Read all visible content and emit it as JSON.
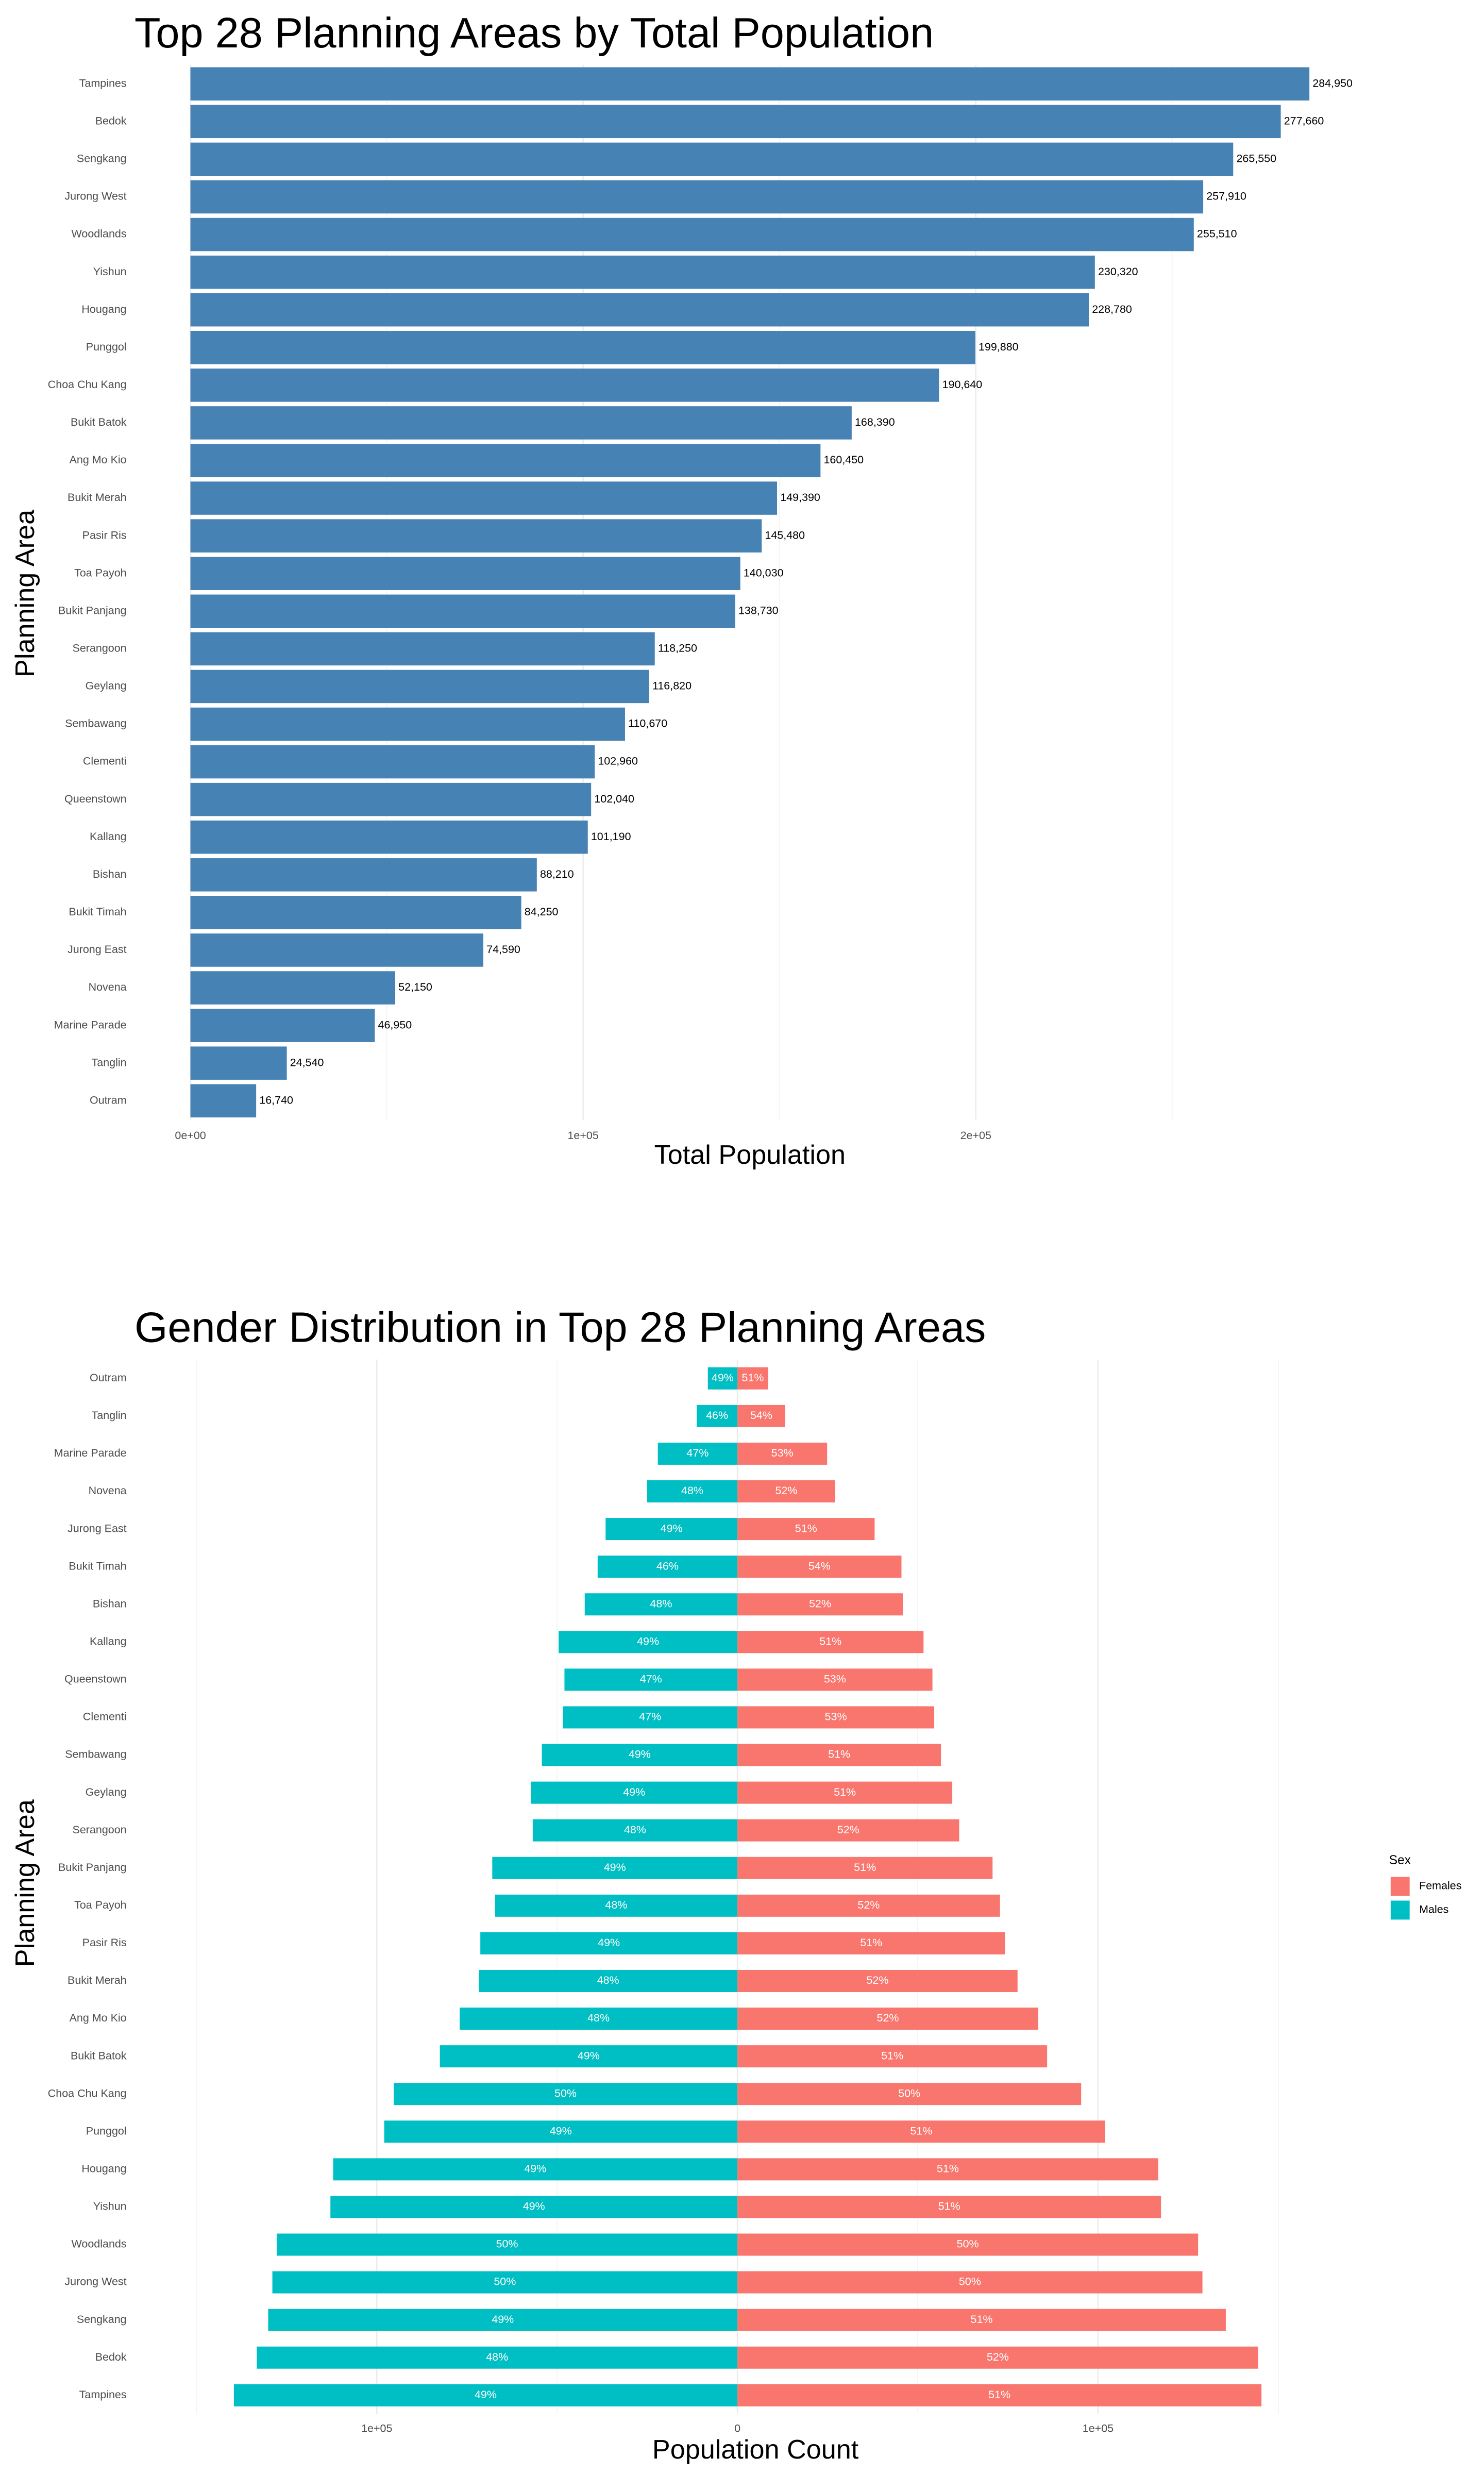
{
  "chart_data": [
    {
      "type": "bar",
      "orientation": "horizontal",
      "title": "Top 28 Planning Areas by Total Population",
      "x_label": "Total Population",
      "y_label": "Planning Area",
      "categories": [
        "Tampines",
        "Bedok",
        "Sengkang",
        "Jurong West",
        "Woodlands",
        "Yishun",
        "Hougang",
        "Punggol",
        "Choa Chu Kang",
        "Bukit Batok",
        "Ang Mo Kio",
        "Bukit Merah",
        "Pasir Ris",
        "Toa Payoh",
        "Bukit Panjang",
        "Serangoon",
        "Geylang",
        "Sembawang",
        "Clementi",
        "Queenstown",
        "Kallang",
        "Bishan",
        "Bukit Timah",
        "Jurong East",
        "Novena",
        "Marine Parade",
        "Tanglin",
        "Outram"
      ],
      "values": [
        284950,
        277660,
        265550,
        257910,
        255510,
        230320,
        228780,
        199880,
        190640,
        168390,
        160450,
        149390,
        145480,
        140030,
        138730,
        118250,
        116820,
        110670,
        102960,
        102040,
        101190,
        88210,
        84250,
        74590,
        52150,
        46950,
        24540,
        16740
      ],
      "value_labels": [
        "284,950",
        "277,660",
        "265,550",
        "257,910",
        "255,510",
        "230,320",
        "228,780",
        "199,880",
        "190,640",
        "168,390",
        "160,450",
        "149,390",
        "145,480",
        "140,030",
        "138,730",
        "118,250",
        "116,820",
        "110,670",
        "102,960",
        "102,040",
        "101,190",
        "88,210",
        "84,250",
        "74,590",
        "52,150",
        "46,950",
        "24,540",
        "16,740"
      ],
      "color": "#4682b4",
      "xlim": [
        -14247.5,
        299197.5
      ],
      "xticks": [
        {
          "value": 0,
          "label": "0e+00"
        },
        {
          "value": 100000,
          "label": "1e+05"
        },
        {
          "value": 200000,
          "label": "2e+05"
        }
      ],
      "xminor": [
        50000,
        150000,
        250000
      ],
      "grid": true
    },
    {
      "type": "bar",
      "orientation": "horizontal",
      "title": "Gender Distribution in Top 28 Planning Areas",
      "x_label": "Population Count",
      "y_label": "Planning Area",
      "legend_title": "Sex",
      "legend": "right",
      "categories": [
        "Outram",
        "Tanglin",
        "Marine Parade",
        "Novena",
        "Jurong East",
        "Bukit Timah",
        "Bishan",
        "Kallang",
        "Queenstown",
        "Clementi",
        "Sembawang",
        "Geylang",
        "Serangoon",
        "Bukit Panjang",
        "Toa Payoh",
        "Pasir Ris",
        "Bukit Merah",
        "Ang Mo Kio",
        "Bukit Batok",
        "Choa Chu Kang",
        "Punggol",
        "Hougang",
        "Yishun",
        "Woodlands",
        "Jurong West",
        "Sengkang",
        "Bedok",
        "Tampines"
      ],
      "series": [
        {
          "name": "Females",
          "color": "#f8766d",
          "values": [
            8540,
            13250,
            24880,
            27120,
            38040,
            45490,
            45870,
            51610,
            54080,
            54570,
            56440,
            59580,
            61490,
            70750,
            72820,
            74190,
            77680,
            83430,
            85880,
            95320,
            101940,
            116680,
            117460,
            127750,
            128950,
            135430,
            144380,
            145320
          ],
          "shares": [
            51,
            54,
            53,
            52,
            51,
            54,
            52,
            51,
            53,
            53,
            51,
            51,
            52,
            51,
            52,
            51,
            52,
            52,
            51,
            50,
            51,
            51,
            51,
            50,
            50,
            51,
            52,
            51
          ],
          "share_labels": [
            "51%",
            "54%",
            "53%",
            "52%",
            "51%",
            "54%",
            "52%",
            "51%",
            "53%",
            "53%",
            "51%",
            "51%",
            "52%",
            "51%",
            "52%",
            "51%",
            "52%",
            "52%",
            "51%",
            "50%",
            "51%",
            "51%",
            "51%",
            "50%",
            "50%",
            "51%",
            "52%",
            "51%"
          ]
        },
        {
          "name": "Males",
          "color": "#00bfc4",
          "values": [
            -8200,
            -11290,
            -22070,
            -25030,
            -36550,
            -38760,
            -42340,
            -49580,
            -47960,
            -48390,
            -54230,
            -57240,
            -56760,
            -67980,
            -67210,
            -71290,
            -71710,
            -77020,
            -82510,
            -95320,
            -97940,
            -112100,
            -112860,
            -127760,
            -128960,
            -130120,
            -133280,
            -139630
          ],
          "shares": [
            49,
            46,
            47,
            48,
            49,
            46,
            48,
            49,
            47,
            47,
            49,
            49,
            48,
            49,
            48,
            49,
            48,
            48,
            49,
            50,
            49,
            49,
            49,
            50,
            50,
            49,
            48,
            49
          ],
          "share_labels": [
            "49%",
            "46%",
            "47%",
            "48%",
            "49%",
            "46%",
            "48%",
            "49%",
            "47%",
            "47%",
            "49%",
            "49%",
            "48%",
            "49%",
            "48%",
            "49%",
            "48%",
            "48%",
            "49%",
            "50%",
            "49%",
            "49%",
            "49%",
            "50%",
            "50%",
            "49%",
            "48%",
            "49%"
          ]
        }
      ],
      "xlim": [
        -165000,
        175000
      ],
      "xticks": [
        {
          "value": -100000,
          "label": "1e+05"
        },
        0,
        {
          "value": 100000,
          "label": "1e+05"
        }
      ],
      "xminor": [
        -150000,
        -50000,
        50000,
        150000
      ],
      "grid": true
    }
  ]
}
